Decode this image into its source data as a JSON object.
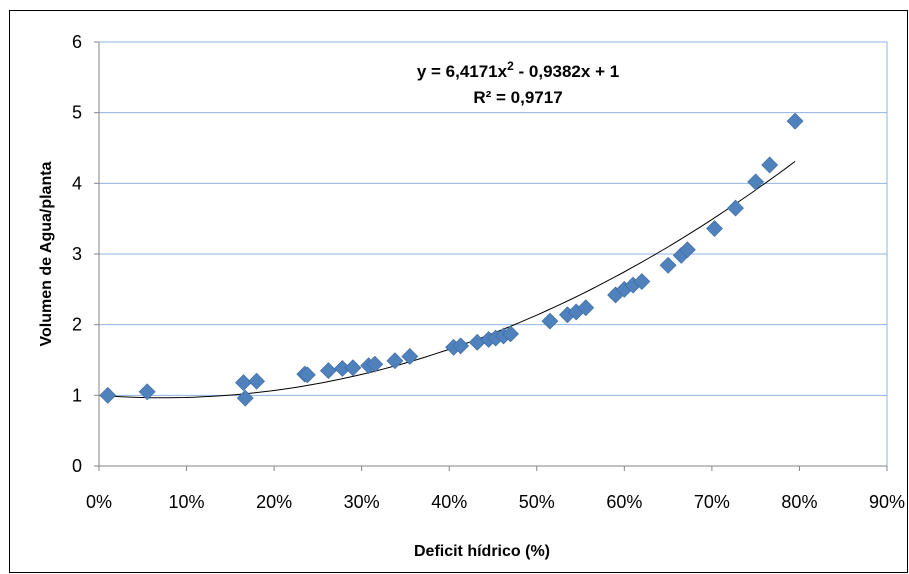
{
  "chart_data": {
    "type": "scatter",
    "xlabel": "Deficit hídrico (%)",
    "ylabel": "Volumen de Agua/planta",
    "xlim": [
      0,
      0.9
    ],
    "ylim": [
      0,
      6
    ],
    "x_ticks": [
      "0%",
      "10%",
      "20%",
      "30%",
      "40%",
      "50%",
      "60%",
      "70%",
      "80%",
      "90%"
    ],
    "y_ticks": [
      "0",
      "1",
      "2",
      "3",
      "4",
      "5",
      "6"
    ],
    "grid": "horizontal",
    "marker_color": "#4F81BD",
    "trendline": {
      "type": "polynomial",
      "coefficients": [
        6.4171,
        -0.9382,
        1
      ],
      "x_range": [
        0.01,
        0.795
      ],
      "equation_prefix": "y = 6,4171x",
      "equation_sup": "2",
      "equation_suffix": " - 0,9382x + 1",
      "r_squared": "R² = 0,9717"
    },
    "points": [
      {
        "x": 0.01,
        "y": 1.0
      },
      {
        "x": 0.055,
        "y": 1.05
      },
      {
        "x": 0.165,
        "y": 1.18
      },
      {
        "x": 0.167,
        "y": 0.96
      },
      {
        "x": 0.18,
        "y": 1.2
      },
      {
        "x": 0.235,
        "y": 1.3
      },
      {
        "x": 0.238,
        "y": 1.29
      },
      {
        "x": 0.262,
        "y": 1.35
      },
      {
        "x": 0.278,
        "y": 1.38
      },
      {
        "x": 0.29,
        "y": 1.39
      },
      {
        "x": 0.308,
        "y": 1.42
      },
      {
        "x": 0.315,
        "y": 1.44
      },
      {
        "x": 0.338,
        "y": 1.49
      },
      {
        "x": 0.355,
        "y": 1.55
      },
      {
        "x": 0.405,
        "y": 1.68
      },
      {
        "x": 0.413,
        "y": 1.7
      },
      {
        "x": 0.432,
        "y": 1.75
      },
      {
        "x": 0.445,
        "y": 1.79
      },
      {
        "x": 0.453,
        "y": 1.81
      },
      {
        "x": 0.462,
        "y": 1.84
      },
      {
        "x": 0.47,
        "y": 1.87
      },
      {
        "x": 0.515,
        "y": 2.05
      },
      {
        "x": 0.535,
        "y": 2.14
      },
      {
        "x": 0.545,
        "y": 2.18
      },
      {
        "x": 0.556,
        "y": 2.24
      },
      {
        "x": 0.59,
        "y": 2.42
      },
      {
        "x": 0.6,
        "y": 2.5
      },
      {
        "x": 0.61,
        "y": 2.56
      },
      {
        "x": 0.62,
        "y": 2.61
      },
      {
        "x": 0.65,
        "y": 2.84
      },
      {
        "x": 0.665,
        "y": 2.98
      },
      {
        "x": 0.672,
        "y": 3.06
      },
      {
        "x": 0.703,
        "y": 3.36
      },
      {
        "x": 0.727,
        "y": 3.65
      },
      {
        "x": 0.75,
        "y": 4.02
      },
      {
        "x": 0.766,
        "y": 4.26
      },
      {
        "x": 0.795,
        "y": 4.88
      }
    ]
  }
}
